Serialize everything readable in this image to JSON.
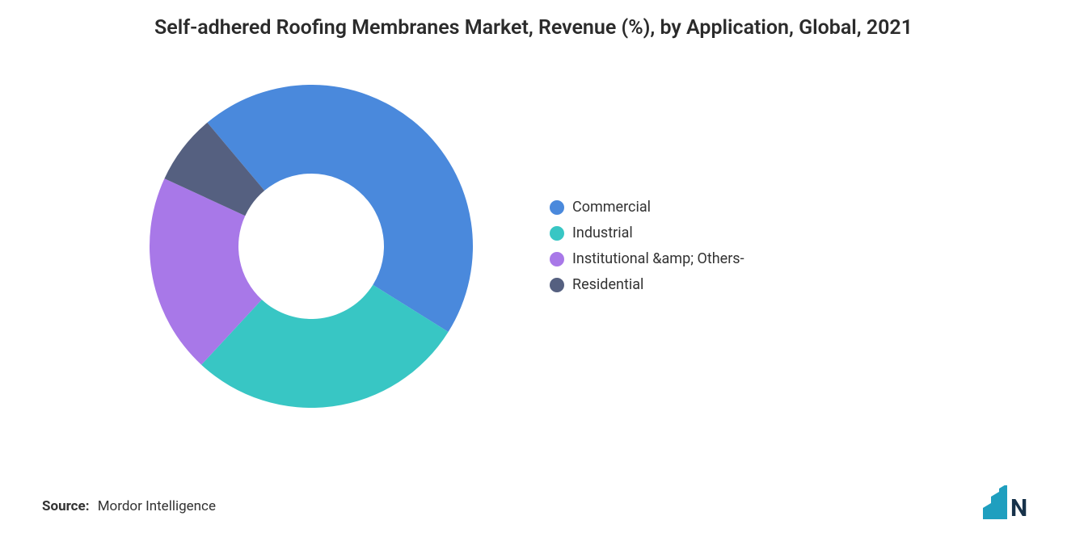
{
  "title": "Self-adhered Roofing Membranes Market, Revenue (%), by Application, Global, 2021",
  "source_label": "Source:",
  "source_value": "Mordor Intelligence",
  "chart": {
    "type": "donut",
    "background_color": "#ffffff",
    "outer_radius": 200,
    "inner_radius": 90,
    "start_angle_deg": -130,
    "slices": [
      {
        "label": "Commercial",
        "value": 45,
        "color": "#4a89dc"
      },
      {
        "label": "Industrial",
        "value": 28,
        "color": "#38c6c4"
      },
      {
        "label": "Institutional &amp; Others-",
        "value": 20,
        "color": "#a878e8"
      },
      {
        "label": "Residential",
        "value": 7,
        "color": "#556080"
      }
    ]
  },
  "legend": {
    "font_size": 18,
    "text_color": "#333333",
    "swatch_radius": 9
  },
  "title_style": {
    "font_size": 25,
    "font_weight": 600,
    "color": "#2b2b2b"
  },
  "logo": {
    "bar_color": "#1f9fbf",
    "text_color": "#17324a"
  }
}
